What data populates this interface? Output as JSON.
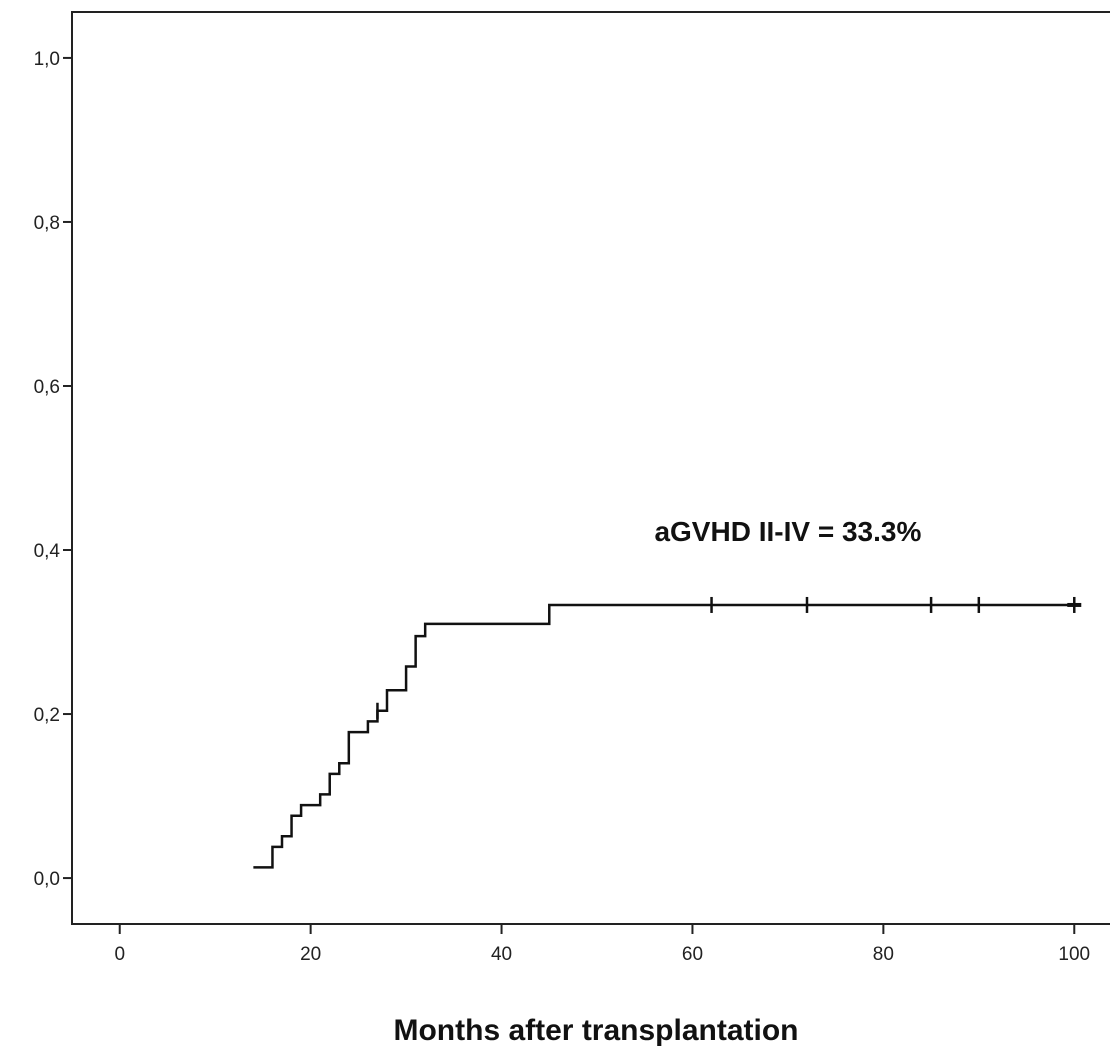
{
  "chart_data": {
    "type": "line",
    "title": "",
    "xlabel": "Months after transplantation",
    "ylabel": "",
    "xlim": [
      -5,
      105
    ],
    "ylim": [
      -0.056,
      1.056
    ],
    "x_ticks": [
      0,
      20,
      40,
      60,
      80,
      100
    ],
    "x_tick_labels": [
      "0",
      "20",
      "40",
      "60",
      "80",
      "100"
    ],
    "y_ticks": [
      0.0,
      0.2,
      0.4,
      0.6,
      0.8,
      1.0
    ],
    "y_tick_labels": [
      "0,0",
      "0,2",
      "0,4",
      "0,6",
      "0,8",
      "1,0"
    ],
    "grid": false,
    "legend": "none",
    "line_color": "#111111",
    "series": [
      {
        "step": "post",
        "points": [
          [
            14,
            0.013
          ],
          [
            16,
            0.038
          ],
          [
            17,
            0.051
          ],
          [
            18,
            0.076
          ],
          [
            19,
            0.089
          ],
          [
            21,
            0.102
          ],
          [
            22,
            0.127
          ],
          [
            23,
            0.14
          ],
          [
            24,
            0.178
          ],
          [
            26,
            0.191
          ],
          [
            27,
            0.204
          ],
          [
            28,
            0.229
          ],
          [
            30,
            0.258
          ],
          [
            31,
            0.295
          ],
          [
            32,
            0.31
          ],
          [
            45,
            0.333
          ],
          [
            100,
            0.333
          ]
        ],
        "censored": [
          [
            27,
            0.204
          ],
          [
            62,
            0.333
          ],
          [
            72,
            0.333
          ],
          [
            85,
            0.333
          ],
          [
            90,
            0.333
          ],
          [
            100,
            0.333
          ]
        ]
      }
    ],
    "annotations": [
      {
        "text": "aGVHD II-IV = 33.3%",
        "x": 70,
        "y": 0.411
      }
    ]
  }
}
